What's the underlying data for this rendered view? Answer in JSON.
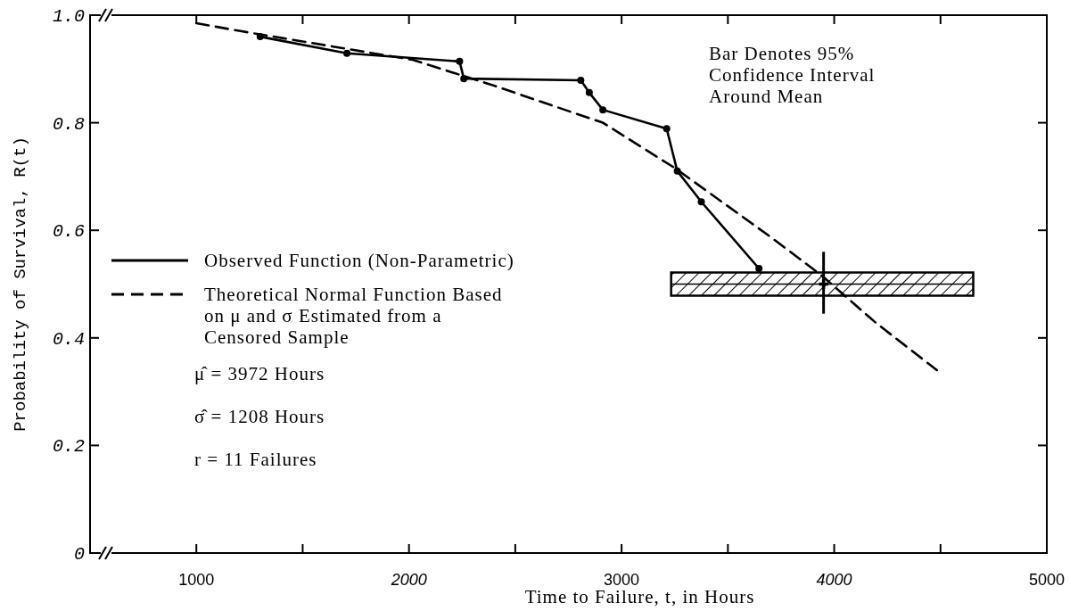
{
  "chart_data": {
    "type": "line",
    "xlabel": "Time to Failure, t, in Hours",
    "ylabel": "Probability of Survival, R(t)",
    "xlim": [
      500,
      5000
    ],
    "xticks": [
      1000,
      {
        "value": 1500,
        "label": null
      },
      2000,
      {
        "value": 2500,
        "label": null
      },
      3000,
      {
        "value": 3500,
        "label": null
      },
      4000,
      {
        "value": 4500,
        "label": null
      },
      5000
    ],
    "ylim": [
      0,
      1
    ],
    "yticks": [
      {
        "value": 0,
        "label": "0"
      },
      0.2,
      0.4,
      0.6,
      0.8,
      {
        "value": 1,
        "label": "1.0"
      }
    ],
    "grid": false,
    "legend": "left",
    "series": [
      {
        "name": "Observed Function (Non-Parametric)",
        "color": "#000000",
        "marker": "circle",
        "line_style": "solid",
        "x": [
          1300,
          1708,
          2238,
          2258,
          2808,
          2848,
          2912,
          3212,
          3262,
          3375,
          3646
        ],
        "values": [
          0.96,
          0.929,
          0.914,
          0.882,
          0.879,
          0.856,
          0.824,
          0.789,
          0.71,
          0.653,
          0.529
        ]
      },
      {
        "name": "Theoretical Normal Function Based on μ and σ Estimated from a Censored Sample",
        "color": "#000000",
        "marker": "none",
        "line_style": "dashed",
        "x": [
          1000,
          1213,
          2017,
          2400,
          2592,
          2912,
          3250,
          3696,
          3938,
          4196,
          4483
        ],
        "values": [
          0.985,
          0.97,
          0.917,
          0.869,
          0.843,
          0.8,
          0.716,
          0.589,
          0.517,
          0.428,
          0.34
        ]
      },
      {
        "type": "scatter",
        "color": "#000000",
        "marker": "cross",
        "x": [
          3950
        ],
        "values": [
          0.5
        ],
        "xerrors": [
          [
            3233,
            4654
          ]
        ],
        "errors": [
          [
            0.445,
            0.56
          ]
        ]
      }
    ],
    "annotations": [
      "Bar Denotes 95% Confidence Interval Around Mean",
      "μ̂ = 3972 Hours",
      "σ̂ = 1208 Hours",
      "r = 11 Failures"
    ]
  }
}
